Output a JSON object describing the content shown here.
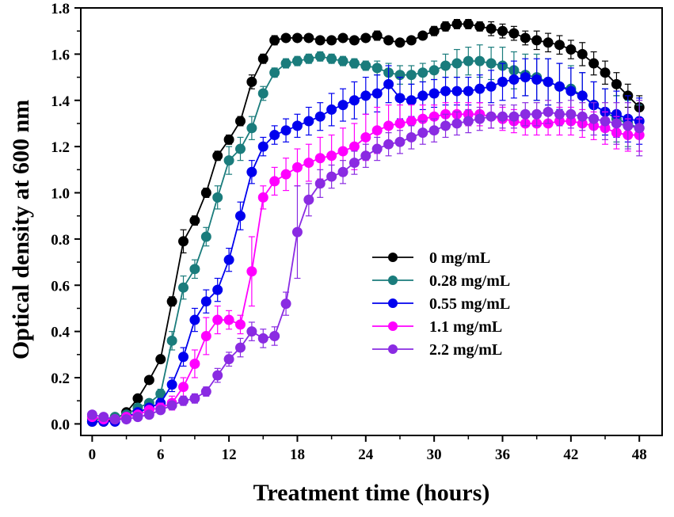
{
  "chart_data": {
    "type": "line",
    "title": "",
    "xlabel": "Treatment time (hours)",
    "ylabel": "Optical density at 600 nm",
    "xlim": [
      -1,
      50
    ],
    "ylim": [
      -0.05,
      1.8
    ],
    "xticks": [
      0,
      6,
      12,
      18,
      24,
      30,
      36,
      42,
      48
    ],
    "yticks": [
      0.0,
      0.2,
      0.4,
      0.6,
      0.8,
      1.0,
      1.2,
      1.4,
      1.6,
      1.8
    ],
    "legend_position": "center-right",
    "grid": false,
    "x": [
      0,
      1,
      2,
      3,
      4,
      5,
      6,
      7,
      8,
      9,
      10,
      11,
      12,
      13,
      14,
      15,
      16,
      17,
      18,
      19,
      20,
      21,
      22,
      23,
      24,
      25,
      26,
      27,
      28,
      29,
      30,
      31,
      32,
      33,
      34,
      35,
      36,
      37,
      38,
      39,
      40,
      41,
      42,
      43,
      44,
      45,
      46,
      47,
      48
    ],
    "series": [
      {
        "name": "0 mg/mL",
        "color": "#000000",
        "values": [
          0.01,
          0.01,
          0.02,
          0.05,
          0.11,
          0.19,
          0.28,
          0.53,
          0.79,
          0.88,
          1.0,
          1.16,
          1.23,
          1.31,
          1.48,
          1.58,
          1.66,
          1.67,
          1.67,
          1.67,
          1.66,
          1.66,
          1.67,
          1.66,
          1.67,
          1.68,
          1.66,
          1.65,
          1.66,
          1.68,
          1.7,
          1.72,
          1.73,
          1.73,
          1.72,
          1.71,
          1.7,
          1.69,
          1.67,
          1.66,
          1.65,
          1.64,
          1.62,
          1.6,
          1.56,
          1.52,
          1.47,
          1.42,
          1.37
        ],
        "errors": [
          0.01,
          0.01,
          0.01,
          0.01,
          0.01,
          0.01,
          0.01,
          0.02,
          0.05,
          0.02,
          0.02,
          0.02,
          0.02,
          0.02,
          0.03,
          0.02,
          0.02,
          0.01,
          0.01,
          0.01,
          0.01,
          0.01,
          0.01,
          0.01,
          0.01,
          0.02,
          0.01,
          0.01,
          0.01,
          0.01,
          0.02,
          0.02,
          0.02,
          0.02,
          0.02,
          0.03,
          0.03,
          0.03,
          0.03,
          0.04,
          0.04,
          0.04,
          0.04,
          0.05,
          0.05,
          0.05,
          0.05,
          0.05,
          0.05
        ]
      },
      {
        "name": "0.28 mg/mL",
        "color": "#1a7c7c",
        "values": [
          0.02,
          0.02,
          0.03,
          0.04,
          0.07,
          0.09,
          0.13,
          0.36,
          0.59,
          0.67,
          0.81,
          0.98,
          1.14,
          1.19,
          1.28,
          1.43,
          1.52,
          1.56,
          1.57,
          1.58,
          1.59,
          1.58,
          1.57,
          1.56,
          1.55,
          1.54,
          1.52,
          1.51,
          1.51,
          1.52,
          1.53,
          1.55,
          1.56,
          1.57,
          1.57,
          1.56,
          1.55,
          1.53,
          1.51,
          1.5,
          1.48,
          1.46,
          1.45,
          1.42,
          1.38,
          1.35,
          1.32,
          1.3,
          1.28
        ],
        "errors": [
          0.01,
          0.01,
          0.01,
          0.01,
          0.01,
          0.01,
          0.02,
          0.04,
          0.05,
          0.04,
          0.04,
          0.05,
          0.06,
          0.05,
          0.05,
          0.03,
          0.02,
          0.02,
          0.02,
          0.02,
          0.02,
          0.02,
          0.02,
          0.02,
          0.02,
          0.03,
          0.04,
          0.04,
          0.04,
          0.04,
          0.04,
          0.05,
          0.06,
          0.06,
          0.07,
          0.07,
          0.08,
          0.08,
          0.09,
          0.1,
          0.1,
          0.1,
          0.1,
          0.1,
          0.1,
          0.1,
          0.1,
          0.1,
          0.1
        ]
      },
      {
        "name": "0.55 mg/mL",
        "color": "#0000ee",
        "values": [
          0.01,
          0.01,
          0.01,
          0.03,
          0.05,
          0.07,
          0.09,
          0.17,
          0.29,
          0.45,
          0.53,
          0.58,
          0.71,
          0.9,
          1.09,
          1.2,
          1.25,
          1.27,
          1.29,
          1.31,
          1.33,
          1.36,
          1.38,
          1.4,
          1.42,
          1.43,
          1.47,
          1.41,
          1.4,
          1.42,
          1.43,
          1.44,
          1.44,
          1.44,
          1.45,
          1.46,
          1.48,
          1.49,
          1.5,
          1.49,
          1.48,
          1.46,
          1.44,
          1.42,
          1.38,
          1.35,
          1.34,
          1.32,
          1.31
        ],
        "errors": [
          0.01,
          0.01,
          0.01,
          0.01,
          0.01,
          0.01,
          0.02,
          0.03,
          0.04,
          0.05,
          0.05,
          0.05,
          0.05,
          0.06,
          0.05,
          0.04,
          0.04,
          0.05,
          0.05,
          0.06,
          0.06,
          0.07,
          0.07,
          0.08,
          0.08,
          0.08,
          0.08,
          0.09,
          0.07,
          0.06,
          0.06,
          0.06,
          0.06,
          0.06,
          0.06,
          0.07,
          0.08,
          0.08,
          0.08,
          0.09,
          0.1,
          0.1,
          0.1,
          0.1,
          0.1,
          0.1,
          0.1,
          0.1,
          0.1
        ]
      },
      {
        "name": "1.1 mg/mL",
        "color": "#ff00ff",
        "values": [
          0.03,
          0.02,
          0.02,
          0.03,
          0.04,
          0.06,
          0.07,
          0.09,
          0.16,
          0.26,
          0.38,
          0.45,
          0.45,
          0.43,
          0.66,
          0.98,
          1.05,
          1.08,
          1.11,
          1.13,
          1.15,
          1.16,
          1.18,
          1.2,
          1.24,
          1.27,
          1.29,
          1.3,
          1.31,
          1.32,
          1.33,
          1.34,
          1.34,
          1.34,
          1.34,
          1.33,
          1.32,
          1.31,
          1.3,
          1.3,
          1.3,
          1.31,
          1.31,
          1.3,
          1.29,
          1.28,
          1.26,
          1.25,
          1.25
        ],
        "errors": [
          0.01,
          0.01,
          0.01,
          0.01,
          0.01,
          0.01,
          0.02,
          0.03,
          0.04,
          0.06,
          0.08,
          0.06,
          0.04,
          0.04,
          0.15,
          0.05,
          0.06,
          0.07,
          0.08,
          0.08,
          0.09,
          0.09,
          0.1,
          0.1,
          0.1,
          0.1,
          0.09,
          0.08,
          0.07,
          0.06,
          0.05,
          0.05,
          0.05,
          0.05,
          0.05,
          0.05,
          0.05,
          0.05,
          0.05,
          0.05,
          0.05,
          0.06,
          0.06,
          0.06,
          0.06,
          0.07,
          0.07,
          0.07,
          0.07
        ]
      },
      {
        "name": "2.2 mg/mL",
        "color": "#8a2be2",
        "values": [
          0.04,
          0.03,
          0.02,
          0.02,
          0.03,
          0.04,
          0.06,
          0.08,
          0.1,
          0.11,
          0.14,
          0.21,
          0.28,
          0.33,
          0.4,
          0.37,
          0.38,
          0.52,
          0.83,
          0.97,
          1.04,
          1.07,
          1.09,
          1.13,
          1.16,
          1.19,
          1.21,
          1.22,
          1.24,
          1.26,
          1.27,
          1.29,
          1.3,
          1.31,
          1.32,
          1.33,
          1.33,
          1.33,
          1.34,
          1.34,
          1.35,
          1.34,
          1.34,
          1.33,
          1.32,
          1.31,
          1.3,
          1.29,
          1.28
        ],
        "errors": [
          0.01,
          0.01,
          0.01,
          0.01,
          0.01,
          0.01,
          0.01,
          0.01,
          0.02,
          0.02,
          0.02,
          0.03,
          0.03,
          0.04,
          0.04,
          0.04,
          0.04,
          0.05,
          0.2,
          0.07,
          0.06,
          0.05,
          0.05,
          0.05,
          0.05,
          0.05,
          0.05,
          0.05,
          0.05,
          0.05,
          0.05,
          0.05,
          0.05,
          0.05,
          0.05,
          0.05,
          0.05,
          0.05,
          0.05,
          0.05,
          0.05,
          0.05,
          0.06,
          0.06,
          0.07,
          0.08,
          0.09,
          0.1,
          0.12
        ]
      }
    ]
  }
}
